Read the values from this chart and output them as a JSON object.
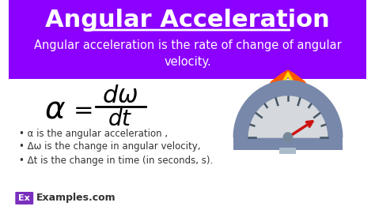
{
  "title": "Angular Acceleration",
  "subtitle": "Angular acceleration is the rate of change of angular\nvelocity.",
  "header_bg": "#8B00FF",
  "body_bg": "#FFFFFF",
  "title_color": "#FFFFFF",
  "subtitle_color": "#FFFFFF",
  "bullet_color": "#333333",
  "bullets": [
    "• α is the angular acceleration ,",
    "• Δω is the change in angular velocity,",
    "• Δt is the change in time (in seconds, s)."
  ],
  "footer_text": "Examples.com",
  "footer_ex_bg": "#7B2FBE",
  "figsize": [
    4.74,
    2.66
  ],
  "dpi": 100
}
